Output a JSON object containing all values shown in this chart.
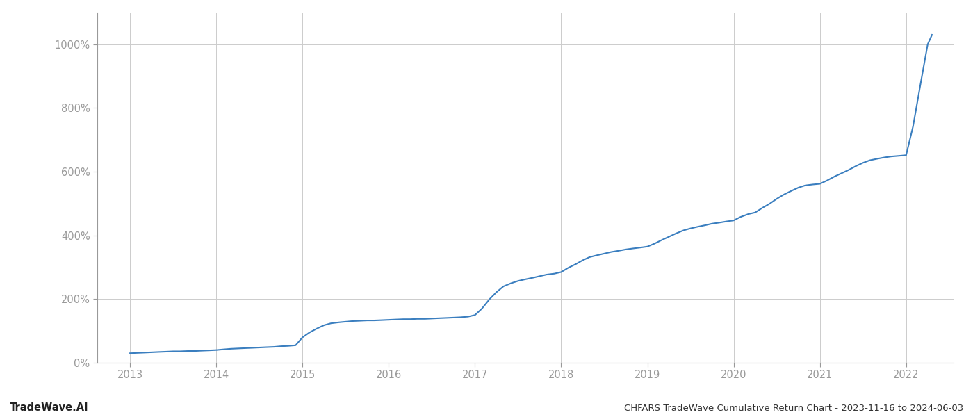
{
  "title": "CHFARS TradeWave Cumulative Return Chart - 2023-11-16 to 2024-06-03",
  "watermark": "TradeWave.AI",
  "line_color": "#3a7ebf",
  "background_color": "#ffffff",
  "grid_color": "#cccccc",
  "y_ticks": [
    0,
    200,
    400,
    600,
    800,
    1000
  ],
  "x_ticks": [
    2013,
    2014,
    2015,
    2016,
    2017,
    2018,
    2019,
    2020,
    2021,
    2022
  ],
  "data_x": [
    2013.0,
    2013.08,
    2013.17,
    2013.25,
    2013.33,
    2013.42,
    2013.5,
    2013.58,
    2013.67,
    2013.75,
    2013.83,
    2013.92,
    2014.0,
    2014.08,
    2014.17,
    2014.25,
    2014.33,
    2014.42,
    2014.5,
    2014.58,
    2014.67,
    2014.75,
    2014.83,
    2014.92,
    2015.0,
    2015.08,
    2015.17,
    2015.25,
    2015.33,
    2015.42,
    2015.5,
    2015.58,
    2015.67,
    2015.75,
    2015.83,
    2015.92,
    2016.0,
    2016.08,
    2016.17,
    2016.25,
    2016.33,
    2016.42,
    2016.5,
    2016.58,
    2016.67,
    2016.75,
    2016.83,
    2016.92,
    2017.0,
    2017.08,
    2017.17,
    2017.25,
    2017.33,
    2017.42,
    2017.5,
    2017.58,
    2017.67,
    2017.75,
    2017.83,
    2017.92,
    2018.0,
    2018.08,
    2018.17,
    2018.25,
    2018.33,
    2018.42,
    2018.5,
    2018.58,
    2018.67,
    2018.75,
    2018.83,
    2018.92,
    2019.0,
    2019.08,
    2019.17,
    2019.25,
    2019.33,
    2019.42,
    2019.5,
    2019.58,
    2019.67,
    2019.75,
    2019.83,
    2019.92,
    2020.0,
    2020.08,
    2020.17,
    2020.25,
    2020.33,
    2020.42,
    2020.5,
    2020.58,
    2020.67,
    2020.75,
    2020.83,
    2020.92,
    2021.0,
    2021.08,
    2021.17,
    2021.25,
    2021.33,
    2021.42,
    2021.5,
    2021.58,
    2021.67,
    2021.75,
    2021.83,
    2021.92,
    2022.0,
    2022.08,
    2022.17,
    2022.25,
    2022.3
  ],
  "data_y": [
    30,
    31,
    32,
    33,
    34,
    35,
    36,
    36,
    37,
    37,
    38,
    39,
    40,
    42,
    44,
    45,
    46,
    47,
    48,
    49,
    50,
    52,
    53,
    55,
    80,
    95,
    108,
    118,
    124,
    127,
    129,
    131,
    132,
    133,
    133,
    134,
    135,
    136,
    137,
    137,
    138,
    138,
    139,
    140,
    141,
    142,
    143,
    145,
    150,
    170,
    200,
    222,
    240,
    250,
    257,
    262,
    267,
    272,
    277,
    280,
    285,
    298,
    310,
    322,
    332,
    338,
    343,
    348,
    352,
    356,
    359,
    362,
    365,
    374,
    386,
    396,
    406,
    416,
    422,
    427,
    432,
    437,
    440,
    444,
    447,
    458,
    467,
    472,
    486,
    500,
    515,
    528,
    540,
    550,
    557,
    560,
    562,
    572,
    585,
    595,
    605,
    618,
    628,
    636,
    641,
    645,
    648,
    650,
    652,
    742,
    880,
    1000,
    1030
  ],
  "ylim": [
    0,
    1100
  ],
  "xlim": [
    2012.62,
    2022.55
  ],
  "title_fontsize": 9.5,
  "watermark_fontsize": 10.5,
  "tick_fontsize": 10.5,
  "tick_color": "#999999",
  "spine_color": "#999999",
  "line_width": 1.5
}
